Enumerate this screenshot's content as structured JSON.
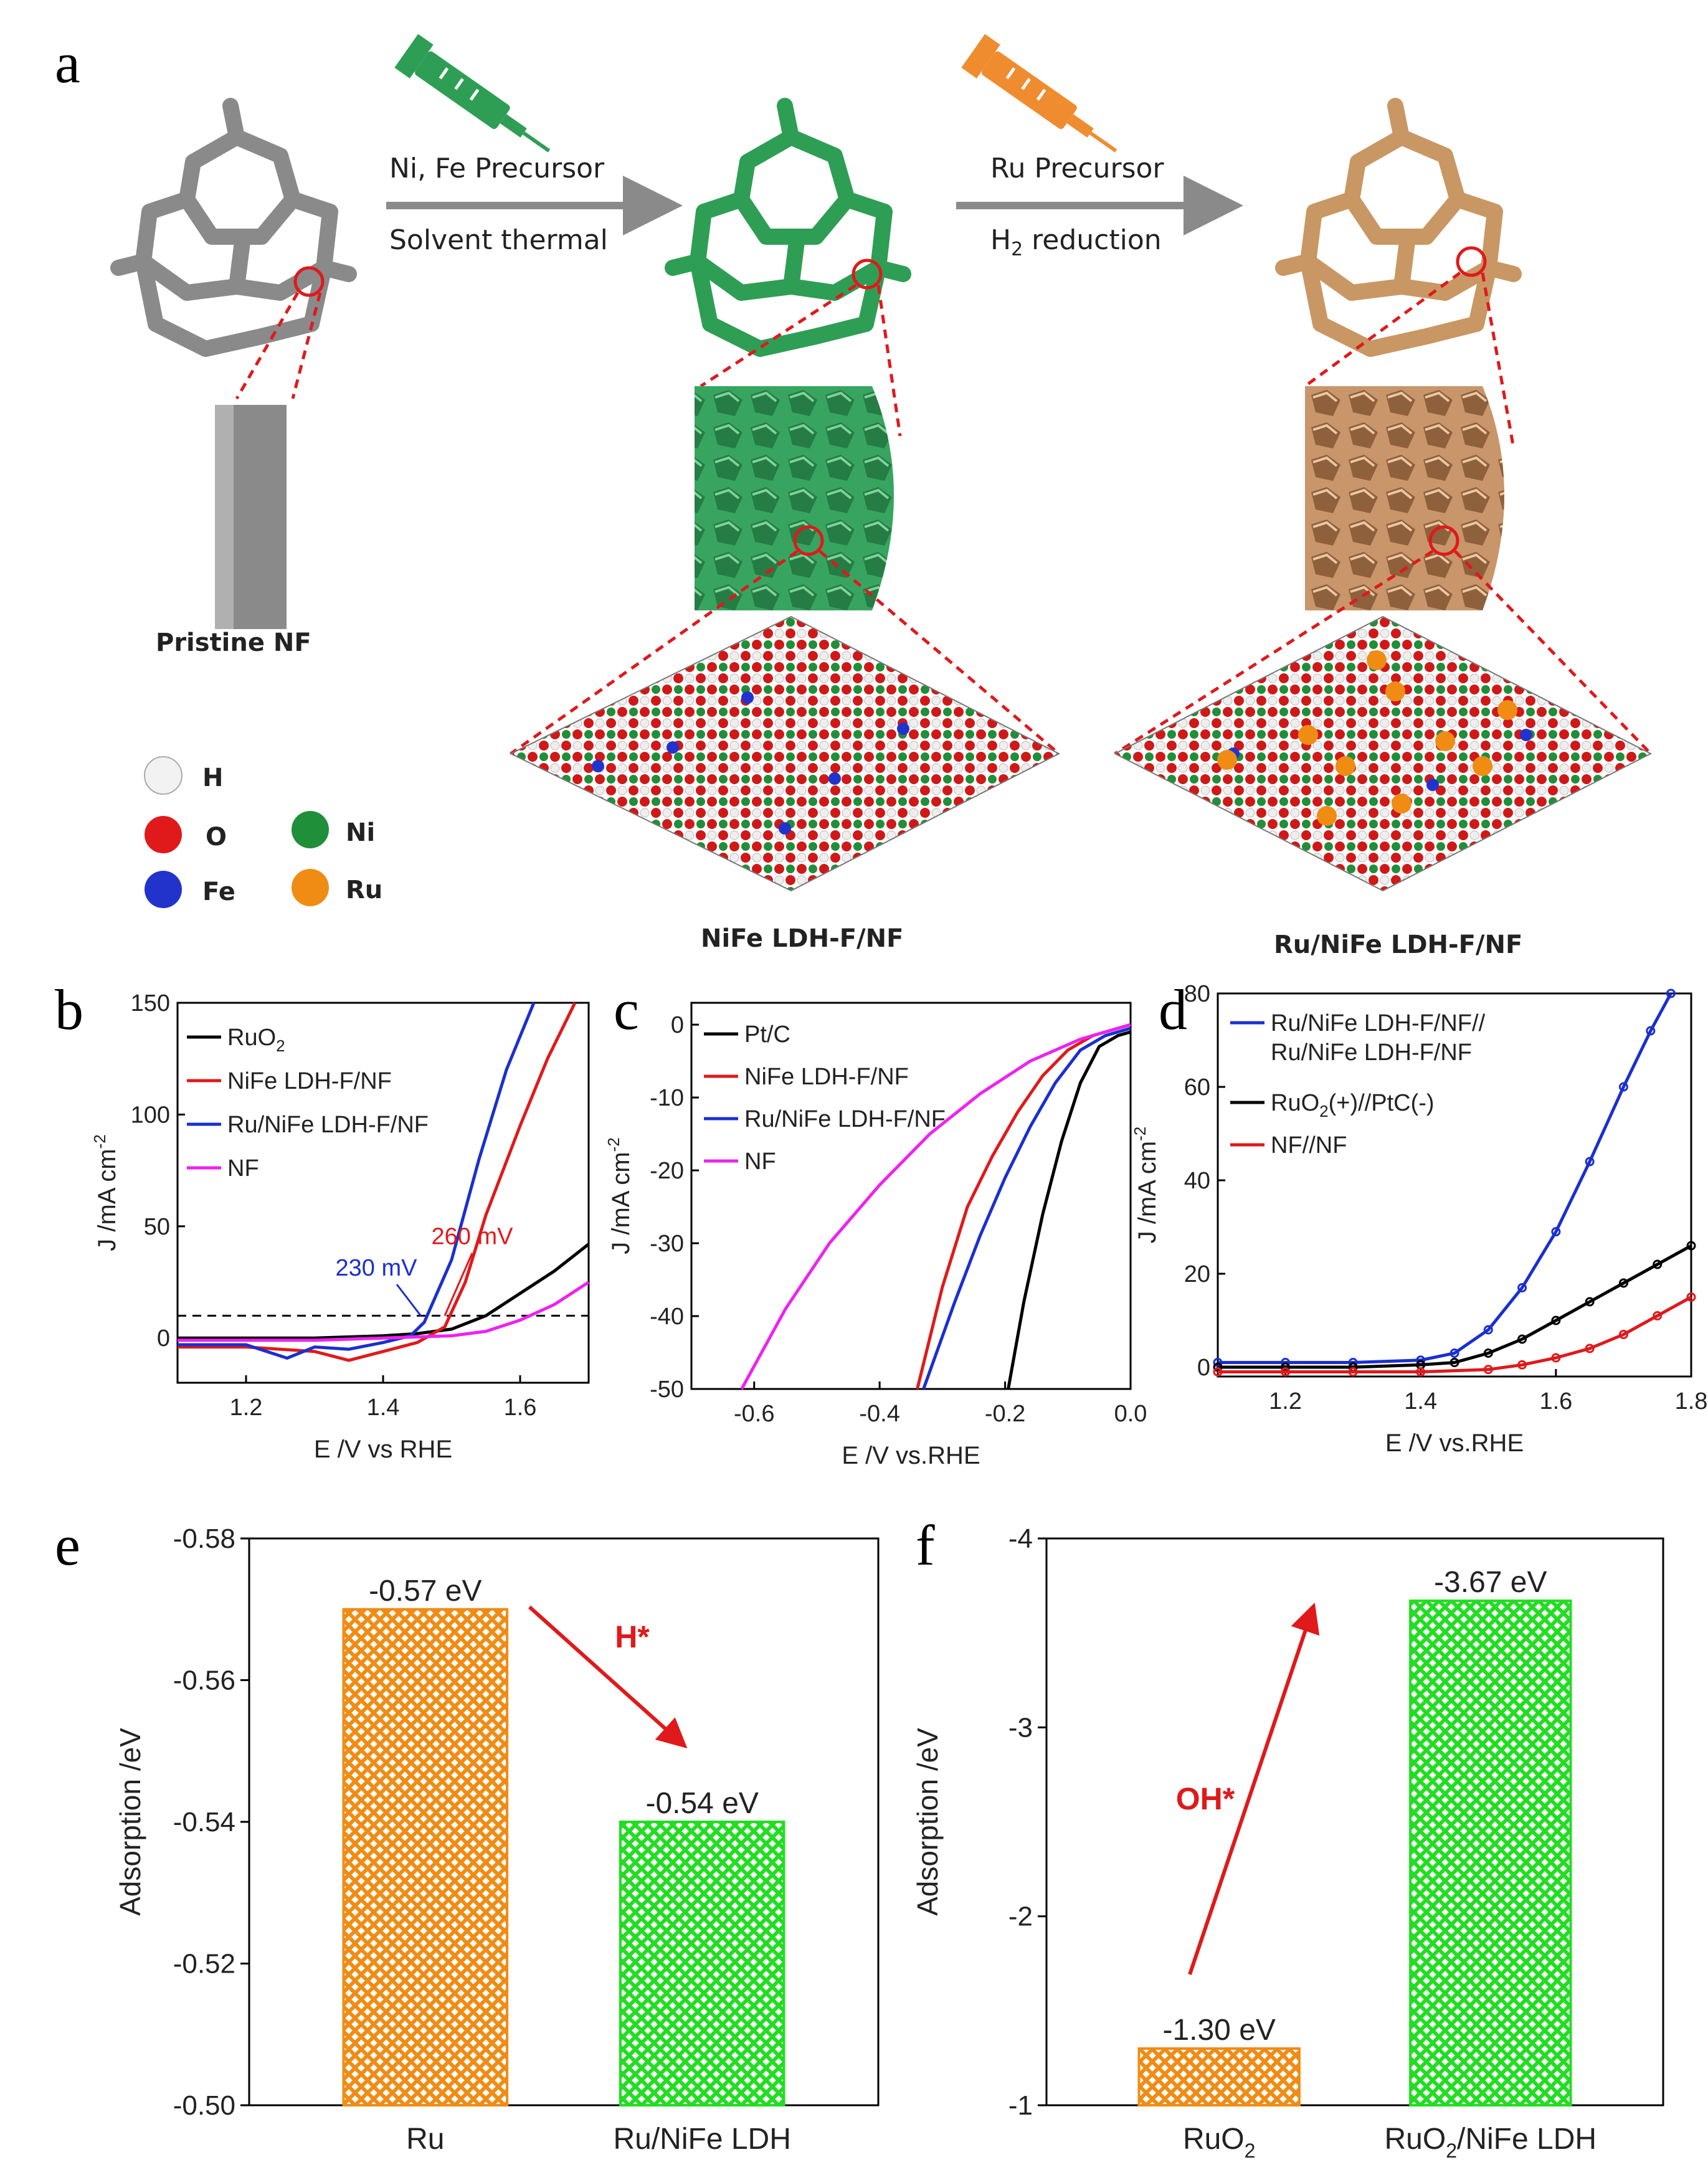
{
  "panel_labels": {
    "a": "a",
    "b": "b",
    "c": "c",
    "d": "d",
    "e": "e",
    "f": "f"
  },
  "schematic": {
    "step1": {
      "top": "Ni, Fe Precursor",
      "bottom": "Solvent thermal"
    },
    "step2": {
      "top": "Ru Precursor",
      "bottom_pre": "H",
      "bottom_sub": "2",
      "bottom_post": " reduction"
    },
    "labels": {
      "pristine": "Pristine NF",
      "nife": "NiFe LDH-F/NF",
      "runife": "Ru/NiFe LDH-F/NF"
    },
    "legend": [
      {
        "symbol": "H",
        "color": "#f2f2f2"
      },
      {
        "symbol": "O",
        "color": "#e0191b"
      },
      {
        "symbol": "Ni",
        "color": "#1f8f3a"
      },
      {
        "symbol": "Fe",
        "color": "#2233cc"
      },
      {
        "symbol": "Ru",
        "color": "#f08c14"
      }
    ],
    "colors": {
      "green": "#2e9e55",
      "copper": "#c99763",
      "grey": "#8a8a8a"
    }
  },
  "chart_data": [
    {
      "id": "b",
      "type": "line",
      "xlabel": "E /V vs RHE",
      "ylabel": "J /mA cm",
      "ylabel_sup": "-2",
      "xlim": [
        1.1,
        1.7
      ],
      "ylim": [
        -20,
        150
      ],
      "xticks": [
        "1.2",
        "1.4",
        "1.6"
      ],
      "yticks": [
        "0",
        "50",
        "100",
        "150"
      ],
      "annotations": [
        {
          "text": "260 mV",
          "color": "#e0191b"
        },
        {
          "text": "230 mV",
          "color": "#1a2fd1"
        }
      ],
      "series": [
        {
          "name": "RuO",
          "name_sub": "2",
          "color": "#000000",
          "x": [
            1.1,
            1.2,
            1.3,
            1.4,
            1.45,
            1.5,
            1.55,
            1.6,
            1.65,
            1.7
          ],
          "y": [
            0,
            0,
            0,
            1,
            2,
            4,
            10,
            20,
            30,
            42
          ]
        },
        {
          "name": "NiFe LDH-F/NF",
          "color": "#e0191b",
          "x": [
            1.1,
            1.2,
            1.3,
            1.35,
            1.4,
            1.45,
            1.49,
            1.52,
            1.55,
            1.6,
            1.64,
            1.68
          ],
          "y": [
            -4,
            -4,
            -6,
            -10,
            -6,
            -2,
            5,
            25,
            55,
            95,
            125,
            150
          ]
        },
        {
          "name": "Ru/NiFe LDH-F/NF",
          "color": "#1a2fd1",
          "x": [
            1.1,
            1.2,
            1.26,
            1.3,
            1.35,
            1.4,
            1.44,
            1.46,
            1.5,
            1.54,
            1.58,
            1.62
          ],
          "y": [
            -3,
            -3,
            -9,
            -4,
            -5,
            -2,
            1,
            7,
            35,
            80,
            120,
            150
          ]
        },
        {
          "name": "NF",
          "color": "#ee22ee",
          "x": [
            1.1,
            1.2,
            1.3,
            1.4,
            1.5,
            1.55,
            1.6,
            1.65,
            1.7
          ],
          "y": [
            -1,
            -1,
            -1,
            0,
            1,
            3,
            8,
            15,
            25
          ]
        }
      ]
    },
    {
      "id": "c",
      "type": "line",
      "xlabel": "E /V vs.RHE",
      "ylabel": "J /mA cm",
      "ylabel_sup": "-2",
      "xlim": [
        -0.7,
        0.0
      ],
      "ylim": [
        -50,
        3
      ],
      "xticks": [
        "-0.6",
        "-0.4",
        "-0.2",
        "0.0"
      ],
      "yticks": [
        "0",
        "-10",
        "-20",
        "-30",
        "-40",
        "-50"
      ],
      "series": [
        {
          "name": "Pt/C",
          "color": "#000000",
          "x": [
            -0.195,
            -0.17,
            -0.14,
            -0.11,
            -0.08,
            -0.05,
            -0.02,
            0.0
          ],
          "y": [
            -50,
            -38,
            -26,
            -16,
            -8,
            -3,
            -1.5,
            -1
          ]
        },
        {
          "name": "NiFe LDH-F/NF",
          "color": "#e0191b",
          "x": [
            -0.34,
            -0.3,
            -0.26,
            -0.22,
            -0.18,
            -0.14,
            -0.1,
            -0.06,
            -0.02,
            0.0
          ],
          "y": [
            -50,
            -36,
            -25,
            -18,
            -12,
            -7,
            -3.5,
            -1.5,
            -0.5,
            0
          ]
        },
        {
          "name": "Ru/NiFe LDH-F/NF",
          "color": "#1a2fd1",
          "x": [
            -0.33,
            -0.28,
            -0.24,
            -0.2,
            -0.16,
            -0.12,
            -0.08,
            -0.04,
            0.0
          ],
          "y": [
            -50,
            -38,
            -29,
            -21,
            -14,
            -8,
            -3.5,
            -1.5,
            -0.5
          ]
        },
        {
          "name": "NF",
          "color": "#ee22ee",
          "x": [
            -0.62,
            -0.55,
            -0.48,
            -0.4,
            -0.32,
            -0.24,
            -0.16,
            -0.08,
            -0.02,
            0.0
          ],
          "y": [
            -50,
            -39,
            -30,
            -22,
            -15,
            -9.5,
            -5,
            -2,
            -0.5,
            0
          ]
        }
      ]
    },
    {
      "id": "d",
      "type": "line",
      "xlabel": "E /V vs.RHE",
      "ylabel": "J /mA cm",
      "ylabel_sup": "-2",
      "xlim": [
        1.1,
        1.8
      ],
      "ylim": [
        -2,
        80
      ],
      "xticks": [
        "1.2",
        "1.4",
        "1.6",
        "1.8"
      ],
      "yticks": [
        "0",
        "20",
        "40",
        "60",
        "80"
      ],
      "series": [
        {
          "name": "Ru/NiFe LDH-F/NF//",
          "name2": "Ru/NiFe LDH-F/NF",
          "color": "#1a2fd1",
          "x": [
            1.1,
            1.2,
            1.3,
            1.4,
            1.45,
            1.5,
            1.55,
            1.6,
            1.65,
            1.7,
            1.74,
            1.77
          ],
          "y": [
            1,
            1,
            1,
            1.5,
            3,
            8,
            17,
            29,
            44,
            60,
            72,
            80
          ]
        },
        {
          "name": "RuO",
          "name_sub": "2",
          "name_post": "(+)//PtC(-)",
          "color": "#000000",
          "x": [
            1.1,
            1.2,
            1.3,
            1.4,
            1.45,
            1.5,
            1.55,
            1.6,
            1.65,
            1.7,
            1.75,
            1.8
          ],
          "y": [
            0,
            0,
            0,
            0.5,
            1,
            3,
            6,
            10,
            14,
            18,
            22,
            26
          ]
        },
        {
          "name": "NF//NF",
          "color": "#e0191b",
          "x": [
            1.1,
            1.2,
            1.3,
            1.4,
            1.5,
            1.55,
            1.6,
            1.65,
            1.7,
            1.75,
            1.8
          ],
          "y": [
            -1,
            -1,
            -1,
            -1,
            -0.5,
            0.5,
            2,
            4,
            7,
            11,
            15
          ]
        }
      ]
    },
    {
      "id": "e",
      "type": "bar",
      "ylabel": "Adsorption /eV",
      "categories": [
        "Ru",
        "Ru/NiFe LDH"
      ],
      "values": [
        -0.57,
        -0.54
      ],
      "value_labels": [
        "-0.57 eV",
        "-0.54 eV"
      ],
      "colors": [
        "#f08c14",
        "#22dd22"
      ],
      "ylim": [
        -0.5,
        -0.58
      ],
      "yticks": [
        "-0.58",
        "-0.56",
        "-0.54",
        "-0.52",
        "-0.50"
      ],
      "annotation": "H*"
    },
    {
      "id": "f",
      "type": "bar",
      "ylabel": "Adsorption /eV",
      "categories": [
        "RuO2",
        "RuO2/NiFe LDH"
      ],
      "category_parts": [
        [
          "RuO",
          "2",
          ""
        ],
        [
          "RuO",
          "2",
          "/NiFe LDH"
        ]
      ],
      "values": [
        -1.3,
        -3.67
      ],
      "value_labels": [
        "-1.30 eV",
        "-3.67 eV"
      ],
      "colors": [
        "#f08c14",
        "#22dd22"
      ],
      "ylim": [
        -1,
        -4
      ],
      "yticks": [
        "-4",
        "-3",
        "-2",
        "-1"
      ],
      "annotation": "OH*"
    }
  ]
}
